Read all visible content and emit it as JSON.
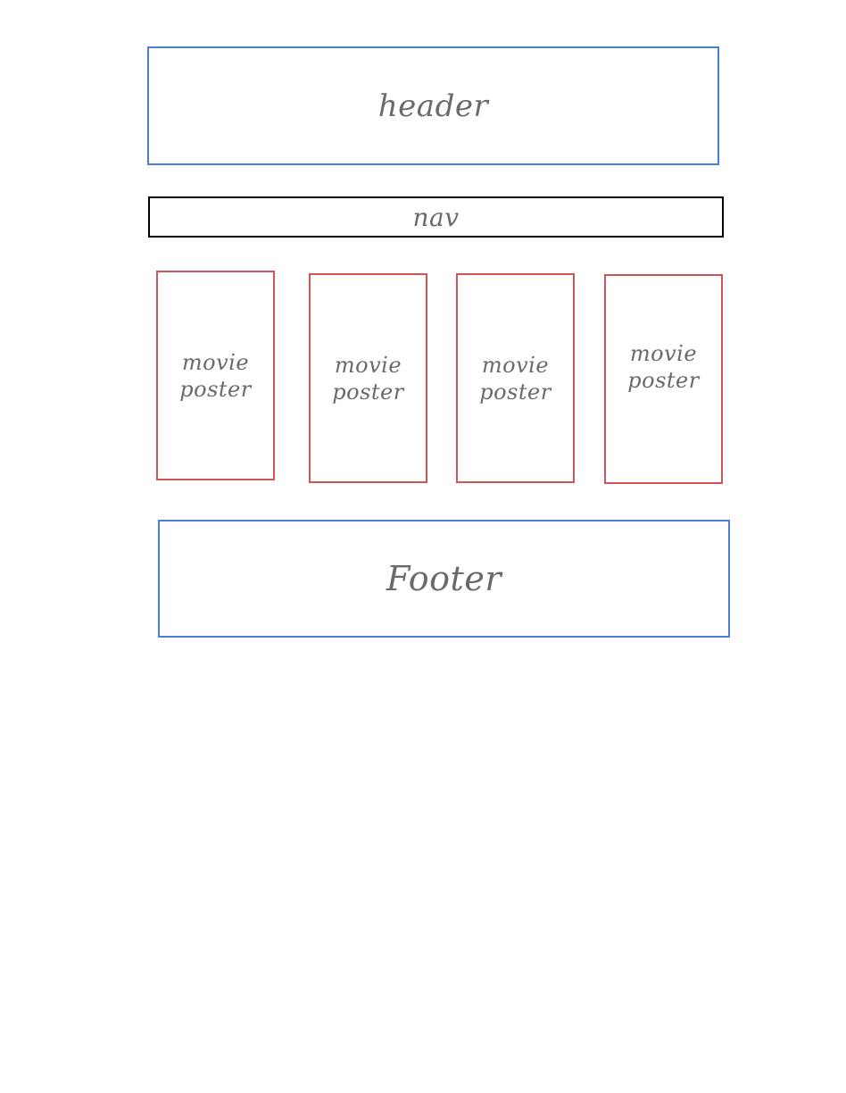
{
  "colors": {
    "layout_box": "#4a7fd9",
    "nav_box": "#000000",
    "poster_box": "#d05555",
    "handwriting": "#6a6a6a"
  },
  "header": {
    "label": "header"
  },
  "nav": {
    "label": "nav"
  },
  "posters": [
    {
      "label": "movie\nposter"
    },
    {
      "label": "movie\nposter"
    },
    {
      "label": "movie\nposter"
    },
    {
      "label": "movie\nposter"
    }
  ],
  "footer": {
    "label": "Footer"
  }
}
